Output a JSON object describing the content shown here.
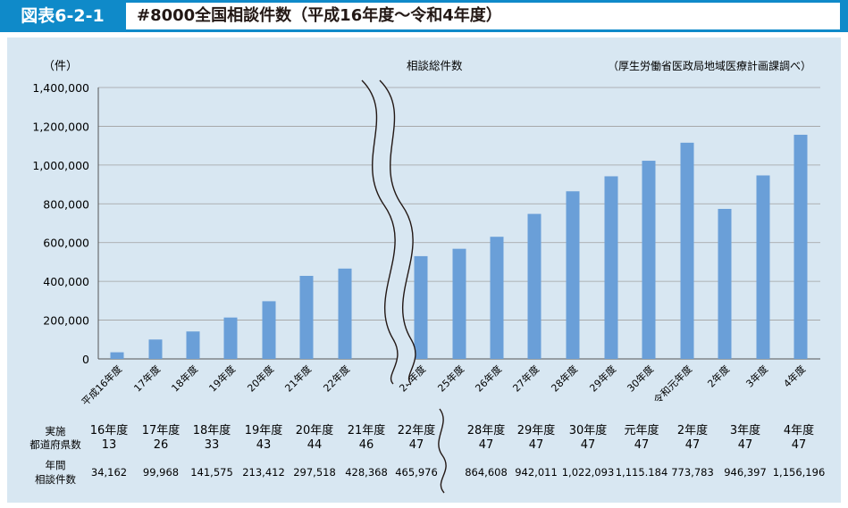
{
  "header": {
    "figure_number": "図表6-2-1",
    "title": "#8000全国相談件数（平成16年度～令和4年度）",
    "bg_color": "#0f8ac9"
  },
  "chart_data": {
    "type": "bar",
    "unit_label": "（件）",
    "series_label": "相談総件数",
    "source_note": "（厚生労働省医政局地域医療計画課調べ）",
    "ylim": [
      0,
      1400000
    ],
    "y_ticks": [
      "0",
      "200,000",
      "400,000",
      "600,000",
      "800,000",
      "1,000,000",
      "1,200,000",
      "1,400,000"
    ],
    "grid": true,
    "bar_color": "#6a9fd8",
    "axis_break": "between 22年度 and 24年度",
    "categories": [
      "平成16年度",
      "17年度",
      "18年度",
      "19年度",
      "20年度",
      "21年度",
      "22年度",
      "24年度",
      "25年度",
      "26年度",
      "27年度",
      "28年度",
      "29年度",
      "30年度",
      "令和元年度",
      "2年度",
      "3年度",
      "4年度"
    ],
    "values": [
      34162,
      99968,
      141575,
      213412,
      297518,
      428368,
      465976,
      530000,
      568000,
      630000,
      748000,
      864608,
      942011,
      1022093,
      1115184,
      773783,
      946397,
      1156196
    ]
  },
  "table": {
    "row1_header": [
      "実施",
      "都道府県数"
    ],
    "row2_header": [
      "年間",
      "相談件数"
    ],
    "columns": [
      {
        "year": "16年度",
        "prefectures": "13",
        "consultations": "34,162"
      },
      {
        "year": "17年度",
        "prefectures": "26",
        "consultations": "99,968"
      },
      {
        "year": "18年度",
        "prefectures": "33",
        "consultations": "141,575"
      },
      {
        "year": "19年度",
        "prefectures": "43",
        "consultations": "213,412"
      },
      {
        "year": "20年度",
        "prefectures": "44",
        "consultations": "297,518"
      },
      {
        "year": "21年度",
        "prefectures": "46",
        "consultations": "428,368"
      },
      {
        "year": "22年度",
        "prefectures": "47",
        "consultations": "465,976"
      },
      {
        "year": "28年度",
        "prefectures": "47",
        "consultations": "864,608"
      },
      {
        "year": "29年度",
        "prefectures": "47",
        "consultations": "942,011"
      },
      {
        "year": "30年度",
        "prefectures": "47",
        "consultations": "1,022,093"
      },
      {
        "year": "元年度",
        "prefectures": "47",
        "consultations": "1,115.184"
      },
      {
        "year": "2年度",
        "prefectures": "47",
        "consultations": "773,783"
      },
      {
        "year": "3年度",
        "prefectures": "47",
        "consultations": "946,397"
      },
      {
        "year": "4年度",
        "prefectures": "47",
        "consultations": "1,156,196"
      }
    ]
  }
}
